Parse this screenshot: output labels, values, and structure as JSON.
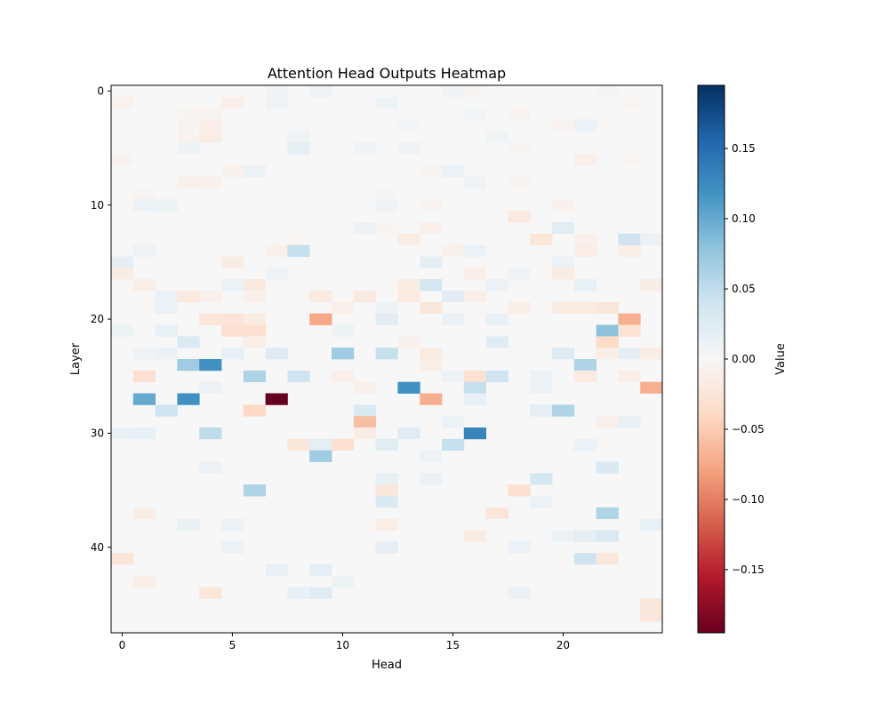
{
  "chart_data": {
    "type": "heatmap",
    "title": "Attention Head Outputs Heatmap",
    "xlabel": "Head",
    "ylabel": "Layer",
    "colorbar_label": "Value",
    "colormap": "RdBu",
    "n_rows": 48,
    "n_cols": 25,
    "xlim": [
      -0.5,
      24.5
    ],
    "ylim": [
      47.5,
      -0.5
    ],
    "vmin": -0.195,
    "vmax": 0.195,
    "x_ticks": [
      0,
      5,
      10,
      15,
      20
    ],
    "x_tick_labels": [
      "0",
      "5",
      "10",
      "15",
      "20"
    ],
    "y_ticks": [
      0,
      10,
      20,
      30,
      40
    ],
    "y_tick_labels": [
      "0",
      "10",
      "20",
      "30",
      "40"
    ],
    "colorbar_ticks": [
      0.15,
      0.1,
      0.05,
      0.0,
      -0.05,
      -0.1,
      -0.15
    ],
    "colorbar_tick_labels": [
      "0.15",
      "0.10",
      "0.05",
      "0.00",
      "−0.05",
      "−0.10",
      "−0.15"
    ],
    "grid": false,
    "background_value": 0.0,
    "cells": [
      [
        0,
        7,
        0.006
      ],
      [
        0,
        9,
        0.008
      ],
      [
        0,
        15,
        0.006
      ],
      [
        0,
        16,
        -0.004
      ],
      [
        0,
        22,
        -0.003
      ],
      [
        1,
        0,
        -0.008
      ],
      [
        1,
        5,
        -0.012
      ],
      [
        1,
        7,
        0.008
      ],
      [
        1,
        12,
        0.01
      ],
      [
        1,
        23,
        -0.004
      ],
      [
        2,
        3,
        -0.004
      ],
      [
        2,
        4,
        -0.006
      ],
      [
        2,
        16,
        0.005
      ],
      [
        2,
        18,
        -0.006
      ],
      [
        3,
        3,
        -0.006
      ],
      [
        3,
        4,
        -0.012
      ],
      [
        3,
        13,
        0.004
      ],
      [
        3,
        20,
        -0.006
      ],
      [
        3,
        21,
        0.012
      ],
      [
        4,
        3,
        -0.006
      ],
      [
        4,
        4,
        -0.014
      ],
      [
        4,
        8,
        0.008
      ],
      [
        4,
        17,
        0.006
      ],
      [
        5,
        3,
        0.01
      ],
      [
        5,
        8,
        0.02
      ],
      [
        5,
        11,
        0.006
      ],
      [
        5,
        13,
        0.008
      ],
      [
        5,
        18,
        -0.004
      ],
      [
        6,
        0,
        -0.006
      ],
      [
        6,
        21,
        -0.01
      ],
      [
        6,
        23,
        -0.004
      ],
      [
        7,
        5,
        -0.008
      ],
      [
        7,
        6,
        0.01
      ],
      [
        7,
        15,
        0.012
      ],
      [
        7,
        14,
        -0.006
      ],
      [
        8,
        3,
        -0.01
      ],
      [
        8,
        4,
        -0.008
      ],
      [
        8,
        16,
        0.008
      ],
      [
        8,
        18,
        -0.004
      ],
      [
        9,
        1,
        -0.004
      ],
      [
        9,
        12,
        0.004
      ],
      [
        10,
        1,
        0.012
      ],
      [
        10,
        2,
        0.01
      ],
      [
        10,
        12,
        0.008
      ],
      [
        10,
        14,
        -0.006
      ],
      [
        10,
        20,
        -0.008
      ],
      [
        11,
        18,
        -0.02
      ],
      [
        12,
        11,
        0.012
      ],
      [
        12,
        12,
        -0.004
      ],
      [
        12,
        14,
        -0.01
      ],
      [
        12,
        20,
        0.022
      ],
      [
        13,
        8,
        -0.004
      ],
      [
        13,
        13,
        -0.016
      ],
      [
        13,
        19,
        -0.024
      ],
      [
        13,
        21,
        -0.01
      ],
      [
        13,
        23,
        0.04
      ],
      [
        13,
        24,
        0.012
      ],
      [
        14,
        1,
        0.008
      ],
      [
        14,
        7,
        -0.01
      ],
      [
        14,
        8,
        0.045
      ],
      [
        14,
        15,
        -0.01
      ],
      [
        14,
        16,
        0.012
      ],
      [
        14,
        21,
        -0.014
      ],
      [
        14,
        23,
        -0.012
      ],
      [
        15,
        0,
        0.02
      ],
      [
        15,
        5,
        -0.016
      ],
      [
        15,
        14,
        0.02
      ],
      [
        15,
        20,
        0.012
      ],
      [
        16,
        0,
        -0.016
      ],
      [
        16,
        7,
        0.008
      ],
      [
        16,
        16,
        -0.012
      ],
      [
        16,
        18,
        0.008
      ],
      [
        16,
        20,
        -0.016
      ],
      [
        17,
        1,
        -0.012
      ],
      [
        17,
        5,
        0.012
      ],
      [
        17,
        6,
        -0.02
      ],
      [
        17,
        13,
        -0.016
      ],
      [
        17,
        14,
        0.035
      ],
      [
        17,
        17,
        0.012
      ],
      [
        17,
        21,
        0.016
      ],
      [
        17,
        24,
        -0.016
      ],
      [
        18,
        2,
        0.012
      ],
      [
        18,
        3,
        -0.02
      ],
      [
        18,
        4,
        -0.01
      ],
      [
        18,
        6,
        -0.01
      ],
      [
        18,
        9,
        -0.018
      ],
      [
        18,
        11,
        -0.02
      ],
      [
        18,
        13,
        -0.018
      ],
      [
        18,
        15,
        0.022
      ],
      [
        18,
        16,
        -0.012
      ],
      [
        19,
        2,
        0.012
      ],
      [
        19,
        10,
        -0.01
      ],
      [
        19,
        12,
        0.01
      ],
      [
        19,
        14,
        -0.022
      ],
      [
        19,
        18,
        -0.012
      ],
      [
        19,
        20,
        -0.016
      ],
      [
        19,
        21,
        -0.016
      ],
      [
        19,
        22,
        -0.022
      ],
      [
        20,
        4,
        -0.024
      ],
      [
        20,
        5,
        -0.026
      ],
      [
        20,
        6,
        -0.016
      ],
      [
        20,
        9,
        -0.075
      ],
      [
        20,
        12,
        0.022
      ],
      [
        20,
        15,
        0.012
      ],
      [
        20,
        17,
        0.016
      ],
      [
        20,
        23,
        -0.07
      ],
      [
        21,
        0,
        0.01
      ],
      [
        21,
        2,
        0.016
      ],
      [
        21,
        5,
        -0.03
      ],
      [
        21,
        6,
        -0.03
      ],
      [
        21,
        10,
        0.01
      ],
      [
        21,
        22,
        0.08
      ],
      [
        21,
        23,
        -0.028
      ],
      [
        22,
        3,
        0.03
      ],
      [
        22,
        6,
        -0.014
      ],
      [
        22,
        13,
        -0.008
      ],
      [
        22,
        17,
        0.024
      ],
      [
        22,
        22,
        -0.038
      ],
      [
        23,
        1,
        0.008
      ],
      [
        23,
        2,
        0.012
      ],
      [
        23,
        5,
        0.016
      ],
      [
        23,
        7,
        0.026
      ],
      [
        23,
        10,
        0.07
      ],
      [
        23,
        12,
        0.045
      ],
      [
        23,
        14,
        -0.016
      ],
      [
        23,
        20,
        0.026
      ],
      [
        23,
        22,
        -0.014
      ],
      [
        23,
        23,
        0.02
      ],
      [
        23,
        24,
        -0.014
      ],
      [
        24,
        3,
        0.07
      ],
      [
        24,
        4,
        0.12
      ],
      [
        24,
        14,
        -0.012
      ],
      [
        24,
        21,
        0.06
      ],
      [
        25,
        1,
        -0.03
      ],
      [
        25,
        6,
        0.06
      ],
      [
        25,
        8,
        0.04
      ],
      [
        25,
        10,
        -0.01
      ],
      [
        25,
        15,
        0.01
      ],
      [
        25,
        16,
        -0.03
      ],
      [
        25,
        17,
        0.04
      ],
      [
        25,
        19,
        0.012
      ],
      [
        25,
        21,
        -0.018
      ],
      [
        25,
        23,
        -0.012
      ],
      [
        26,
        4,
        0.012
      ],
      [
        26,
        11,
        -0.01
      ],
      [
        26,
        13,
        0.12
      ],
      [
        26,
        16,
        0.045
      ],
      [
        26,
        19,
        0.012
      ],
      [
        26,
        24,
        -0.07
      ],
      [
        27,
        1,
        0.1
      ],
      [
        27,
        3,
        0.12
      ],
      [
        27,
        7,
        -0.195
      ],
      [
        27,
        14,
        -0.07
      ],
      [
        27,
        16,
        0.016
      ],
      [
        28,
        2,
        0.04
      ],
      [
        28,
        6,
        -0.04
      ],
      [
        28,
        11,
        0.03
      ],
      [
        28,
        19,
        0.02
      ],
      [
        28,
        20,
        0.06
      ],
      [
        29,
        11,
        -0.06
      ],
      [
        29,
        15,
        0.012
      ],
      [
        29,
        22,
        -0.01
      ],
      [
        29,
        23,
        0.016
      ],
      [
        30,
        0,
        0.014
      ],
      [
        30,
        1,
        0.016
      ],
      [
        30,
        4,
        0.05
      ],
      [
        30,
        11,
        -0.014
      ],
      [
        30,
        13,
        0.024
      ],
      [
        30,
        16,
        0.13
      ],
      [
        31,
        8,
        -0.022
      ],
      [
        31,
        9,
        0.02
      ],
      [
        31,
        10,
        -0.03
      ],
      [
        31,
        12,
        0.022
      ],
      [
        31,
        15,
        0.045
      ],
      [
        31,
        21,
        0.012
      ],
      [
        32,
        9,
        0.07
      ],
      [
        32,
        14,
        0.01
      ],
      [
        33,
        4,
        0.012
      ],
      [
        33,
        22,
        0.03
      ],
      [
        34,
        12,
        0.016
      ],
      [
        34,
        14,
        0.012
      ],
      [
        34,
        19,
        0.035
      ],
      [
        35,
        6,
        0.06
      ],
      [
        35,
        12,
        -0.022
      ],
      [
        35,
        18,
        -0.03
      ],
      [
        36,
        12,
        0.03
      ],
      [
        36,
        19,
        0.012
      ],
      [
        37,
        1,
        -0.014
      ],
      [
        37,
        17,
        -0.024
      ],
      [
        37,
        22,
        0.06
      ],
      [
        38,
        3,
        0.014
      ],
      [
        38,
        5,
        0.012
      ],
      [
        38,
        12,
        -0.014
      ],
      [
        38,
        24,
        0.016
      ],
      [
        39,
        16,
        -0.016
      ],
      [
        39,
        20,
        0.012
      ],
      [
        39,
        21,
        0.02
      ],
      [
        39,
        22,
        0.03
      ],
      [
        40,
        5,
        0.012
      ],
      [
        40,
        12,
        0.02
      ],
      [
        40,
        18,
        0.012
      ],
      [
        41,
        0,
        -0.025
      ],
      [
        41,
        21,
        0.04
      ],
      [
        41,
        22,
        -0.022
      ],
      [
        42,
        7,
        0.016
      ],
      [
        42,
        9,
        0.02
      ],
      [
        43,
        1,
        -0.012
      ],
      [
        43,
        10,
        0.01
      ],
      [
        44,
        4,
        -0.024
      ],
      [
        44,
        8,
        0.016
      ],
      [
        44,
        9,
        0.024
      ],
      [
        44,
        18,
        0.012
      ],
      [
        45,
        24,
        -0.022
      ],
      [
        46,
        24,
        -0.022
      ]
    ]
  }
}
